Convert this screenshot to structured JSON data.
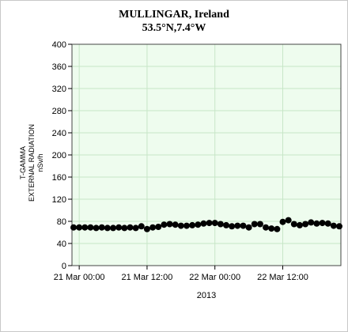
{
  "chart_data": {
    "type": "scatter",
    "title": "MULLINGAR, Ireland",
    "subtitle": "53.5°N,7.4°W",
    "ylabel_lines": [
      "T-GAMMA",
      "EXTERNAL RADIATION",
      "nSv/h"
    ],
    "xlabel": "2013",
    "ylim": [
      0,
      400
    ],
    "yticks": [
      0,
      40,
      80,
      120,
      160,
      200,
      240,
      280,
      320,
      360,
      400
    ],
    "xlim_hours": [
      -1,
      46
    ],
    "xticks": [
      {
        "label": "21 Mar 00:00",
        "hours": 0
      },
      {
        "label": "21 Mar 12:00",
        "hours": 12
      },
      {
        "label": "22 Mar 00:00",
        "hours": 24
      },
      {
        "label": "22 Mar 12:00",
        "hours": 36
      }
    ],
    "grid": true,
    "marker_color": "#000000",
    "background_color": "#eefcee",
    "grid_color": "#c7e6c7",
    "series": [
      {
        "x_hours": [
          -1,
          0,
          1,
          2,
          3,
          4,
          5,
          6,
          7,
          8,
          9,
          10,
          11,
          12,
          13,
          14,
          15,
          16,
          17,
          18,
          19,
          20,
          21,
          22,
          23,
          24,
          25,
          26,
          27,
          28,
          29,
          30,
          31,
          32,
          33,
          34,
          35,
          36,
          37,
          38,
          39,
          40,
          41,
          42,
          43,
          44,
          45,
          46
        ],
        "y": [
          69,
          69,
          69,
          69,
          68,
          69,
          68,
          68,
          69,
          68,
          69,
          68,
          71,
          66,
          69,
          70,
          74,
          75,
          74,
          72,
          72,
          73,
          74,
          76,
          77,
          77,
          75,
          73,
          71,
          72,
          72,
          69,
          75,
          75,
          69,
          67,
          66,
          79,
          82,
          75,
          73,
          75,
          78,
          76,
          77,
          76,
          72,
          71
        ]
      }
    ]
  }
}
